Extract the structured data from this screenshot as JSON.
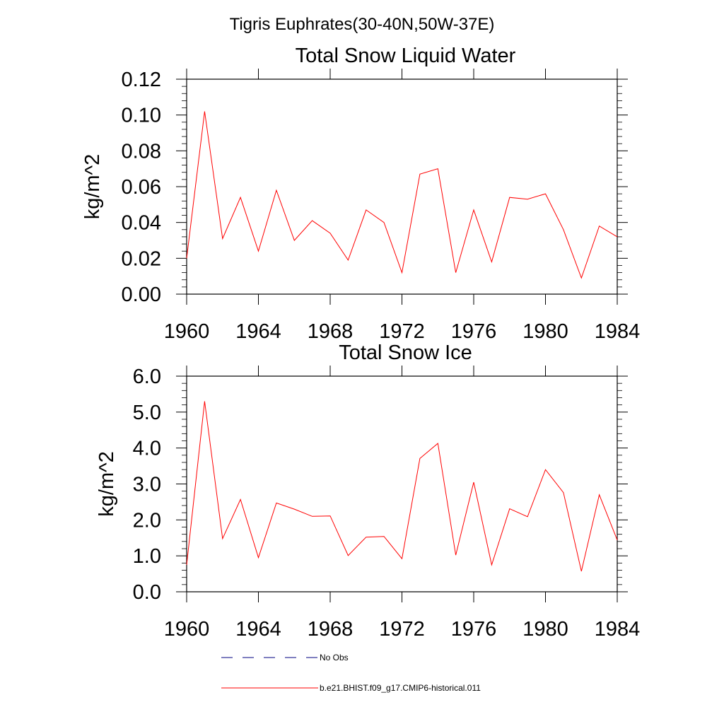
{
  "figure": {
    "suptitle": "Tigris Euphrates(30-40N,50W-37E)"
  },
  "legend": {
    "items": [
      {
        "label": "No Obs",
        "color": "#000080",
        "style": "dashed"
      },
      {
        "label": "b.e21.BHIST.f09_g17.CMIP6-historical.011",
        "color": "#ff0000",
        "style": "solid"
      }
    ]
  },
  "chart_data": [
    {
      "type": "line",
      "title": "Total Snow Liquid Water",
      "xlabel": "",
      "ylabel": "kg/m^2",
      "xlim": [
        1960,
        1984
      ],
      "ylim": [
        0.0,
        0.12
      ],
      "xticks": [
        "1960",
        "1964",
        "1968",
        "1972",
        "1976",
        "1980",
        "1984"
      ],
      "yticks": [
        "0.00",
        "0.02",
        "0.04",
        "0.06",
        "0.08",
        "0.10",
        "0.12"
      ],
      "grid": false,
      "series": [
        {
          "name": "b.e21.BHIST.f09_g17.CMIP6-historical.011",
          "color": "#ff0000",
          "x": [
            1960,
            1961,
            1962,
            1963,
            1964,
            1965,
            1966,
            1967,
            1968,
            1969,
            1970,
            1971,
            1972,
            1973,
            1974,
            1975,
            1976,
            1977,
            1978,
            1979,
            1980,
            1981,
            1982,
            1983,
            1984
          ],
          "y": [
            0.02,
            0.102,
            0.031,
            0.054,
            0.024,
            0.058,
            0.03,
            0.041,
            0.034,
            0.019,
            0.047,
            0.04,
            0.012,
            0.067,
            0.07,
            0.012,
            0.047,
            0.018,
            0.054,
            0.053,
            0.056,
            0.036,
            0.009,
            0.038,
            0.032
          ]
        }
      ]
    },
    {
      "type": "line",
      "title": "Total Snow Ice",
      "xlabel": "",
      "ylabel": "kg/m^2",
      "xlim": [
        1960,
        1984
      ],
      "ylim": [
        0.0,
        6.0
      ],
      "xticks": [
        "1960",
        "1964",
        "1968",
        "1972",
        "1976",
        "1980",
        "1984"
      ],
      "yticks": [
        "0.0",
        "1.0",
        "2.0",
        "3.0",
        "4.0",
        "5.0",
        "6.0"
      ],
      "grid": false,
      "series": [
        {
          "name": "b.e21.BHIST.f09_g17.CMIP6-historical.011",
          "color": "#ff0000",
          "x": [
            1960,
            1961,
            1962,
            1963,
            1964,
            1965,
            1966,
            1967,
            1968,
            1969,
            1970,
            1971,
            1972,
            1973,
            1974,
            1975,
            1976,
            1977,
            1978,
            1979,
            1980,
            1981,
            1982,
            1983,
            1984
          ],
          "y": [
            0.75,
            5.3,
            1.48,
            2.57,
            0.95,
            2.47,
            2.3,
            2.1,
            2.11,
            1.01,
            1.52,
            1.54,
            0.92,
            3.71,
            4.13,
            1.02,
            3.05,
            0.75,
            2.31,
            2.09,
            3.4,
            2.76,
            0.57,
            2.7,
            1.44
          ]
        }
      ]
    }
  ]
}
